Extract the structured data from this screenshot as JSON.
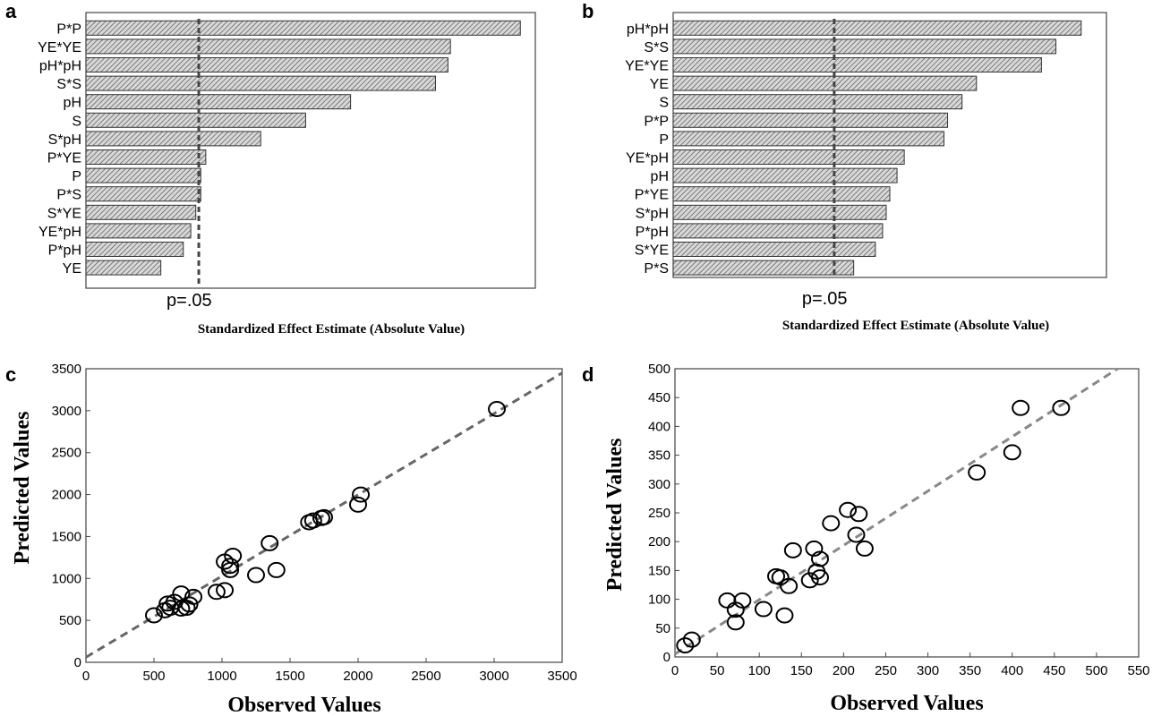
{
  "chart_data": [
    {
      "panel": "a",
      "type": "bar",
      "orientation": "horizontal",
      "xlabel": "Standardized Effect Estimate (Absolute Value)",
      "threshold_label": "p=.05",
      "threshold": 2.26,
      "xlim": [
        0,
        9
      ],
      "categories": [
        "P*P",
        "YE*YE",
        "pH*pH",
        "S*S",
        "pH",
        "S",
        "S*pH",
        "P*YE",
        "P",
        "P*S",
        "S*YE",
        "YE*pH",
        "P*pH",
        "YE"
      ],
      "values": [
        8.7,
        7.3,
        7.25,
        7.0,
        5.3,
        4.4,
        3.5,
        2.4,
        2.3,
        2.3,
        2.2,
        2.1,
        1.95,
        1.5
      ]
    },
    {
      "panel": "b",
      "type": "bar",
      "orientation": "horizontal",
      "xlabel": "Standardized Effect Estimate (Absolute Value)",
      "threshold_label": "p=.05",
      "threshold": 2.23,
      "xlim": [
        0,
        6
      ],
      "categories": [
        "pH*pH",
        "S*S",
        "YE*YE",
        "YE",
        "S",
        "P*P",
        "P",
        "YE*pH",
        "pH",
        "P*YE",
        "S*pH",
        "P*pH",
        "S*YE",
        "P*S"
      ],
      "values": [
        5.65,
        5.3,
        5.1,
        4.2,
        4.0,
        3.8,
        3.75,
        3.2,
        3.1,
        3.0,
        2.95,
        2.9,
        2.8,
        2.5
      ]
    },
    {
      "panel": "c",
      "type": "scatter",
      "xlabel": "Observed Values",
      "ylabel": "Predicted Values",
      "xlim": [
        0,
        3500
      ],
      "ylim": [
        0,
        3500
      ],
      "xticks": [
        0,
        500,
        1000,
        1500,
        2000,
        2500,
        3000,
        3500
      ],
      "yticks": [
        0,
        500,
        1000,
        1500,
        2000,
        2500,
        3000,
        3500
      ],
      "fit_line": [
        [
          0,
          60
        ],
        [
          3500,
          3450
        ]
      ],
      "points": [
        {
          "x": 500,
          "y": 560
        },
        {
          "x": 580,
          "y": 620
        },
        {
          "x": 600,
          "y": 700
        },
        {
          "x": 620,
          "y": 650
        },
        {
          "x": 650,
          "y": 720
        },
        {
          "x": 700,
          "y": 820
        },
        {
          "x": 700,
          "y": 640
        },
        {
          "x": 740,
          "y": 650
        },
        {
          "x": 760,
          "y": 690
        },
        {
          "x": 790,
          "y": 780
        },
        {
          "x": 960,
          "y": 840
        },
        {
          "x": 1020,
          "y": 860
        },
        {
          "x": 1020,
          "y": 1200
        },
        {
          "x": 1060,
          "y": 1100
        },
        {
          "x": 1060,
          "y": 1150
        },
        {
          "x": 1080,
          "y": 1270
        },
        {
          "x": 1250,
          "y": 1040
        },
        {
          "x": 1350,
          "y": 1420
        },
        {
          "x": 1400,
          "y": 1100
        },
        {
          "x": 1640,
          "y": 1670
        },
        {
          "x": 1670,
          "y": 1690
        },
        {
          "x": 1730,
          "y": 1720
        },
        {
          "x": 1750,
          "y": 1730
        },
        {
          "x": 2000,
          "y": 1880
        },
        {
          "x": 2020,
          "y": 2000
        },
        {
          "x": 3020,
          "y": 3020
        }
      ]
    },
    {
      "panel": "d",
      "type": "scatter",
      "xlabel": "Observed Values",
      "ylabel": "Predicted Values",
      "xlim": [
        0,
        550
      ],
      "ylim": [
        0,
        500
      ],
      "xticks": [
        0,
        50,
        100,
        150,
        200,
        250,
        300,
        350,
        400,
        450,
        500,
        550
      ],
      "yticks": [
        0,
        50,
        100,
        150,
        200,
        250,
        300,
        350,
        400,
        450,
        500
      ],
      "fit_line": [
        [
          0,
          5
        ],
        [
          525,
          500
        ]
      ],
      "points": [
        {
          "x": 12,
          "y": 20
        },
        {
          "x": 20,
          "y": 30
        },
        {
          "x": 62,
          "y": 98
        },
        {
          "x": 72,
          "y": 60
        },
        {
          "x": 72,
          "y": 82
        },
        {
          "x": 80,
          "y": 98
        },
        {
          "x": 105,
          "y": 83
        },
        {
          "x": 120,
          "y": 140
        },
        {
          "x": 125,
          "y": 138
        },
        {
          "x": 130,
          "y": 72
        },
        {
          "x": 135,
          "y": 123
        },
        {
          "x": 140,
          "y": 185
        },
        {
          "x": 160,
          "y": 133
        },
        {
          "x": 165,
          "y": 188
        },
        {
          "x": 168,
          "y": 148
        },
        {
          "x": 172,
          "y": 170
        },
        {
          "x": 172,
          "y": 138
        },
        {
          "x": 185,
          "y": 232
        },
        {
          "x": 205,
          "y": 255
        },
        {
          "x": 215,
          "y": 212
        },
        {
          "x": 218,
          "y": 248
        },
        {
          "x": 225,
          "y": 188
        },
        {
          "x": 358,
          "y": 320
        },
        {
          "x": 400,
          "y": 355
        },
        {
          "x": 410,
          "y": 432
        },
        {
          "x": 458,
          "y": 432
        }
      ]
    }
  ]
}
